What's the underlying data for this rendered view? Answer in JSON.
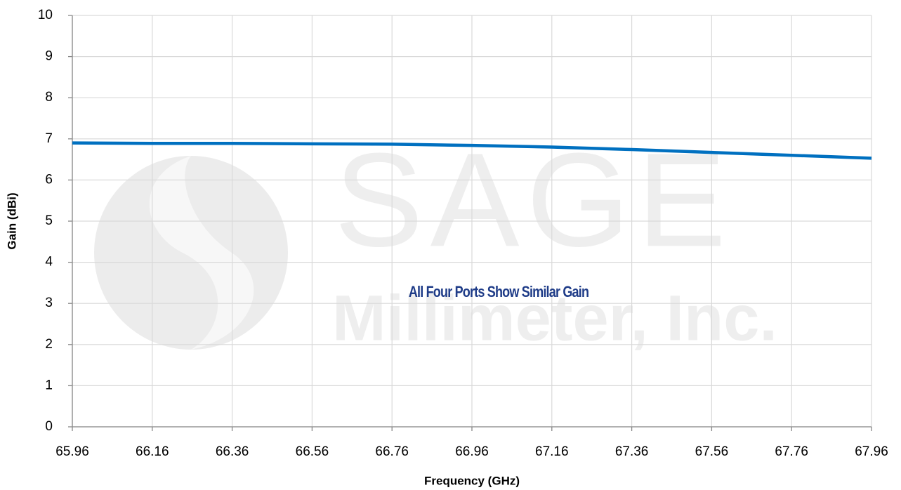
{
  "chart_data": {
    "type": "line",
    "x_label": "Frequency (GHz)",
    "y_label": "Gain (dBi)",
    "annotation": "All Four Ports Show Similar Gain",
    "watermark": [
      "SAGE",
      "Millimeter, Inc."
    ],
    "x": [
      65.96,
      66.16,
      66.36,
      66.56,
      66.76,
      66.96,
      67.16,
      67.36,
      67.56,
      67.76,
      67.96
    ],
    "series": [
      {
        "name": "Gain",
        "color": "#0070c0",
        "values": [
          6.9,
          6.89,
          6.89,
          6.88,
          6.87,
          6.84,
          6.8,
          6.74,
          6.67,
          6.6,
          6.53
        ]
      }
    ],
    "xlim": [
      65.96,
      67.96
    ],
    "xticks": [
      65.96,
      66.16,
      66.36,
      66.56,
      66.76,
      66.96,
      67.16,
      67.36,
      67.56,
      67.76,
      67.96
    ],
    "ylim": [
      0,
      10
    ],
    "yticks": [
      0,
      1,
      2,
      3,
      4,
      5,
      6,
      7,
      8,
      9,
      10
    ],
    "grid": true
  }
}
